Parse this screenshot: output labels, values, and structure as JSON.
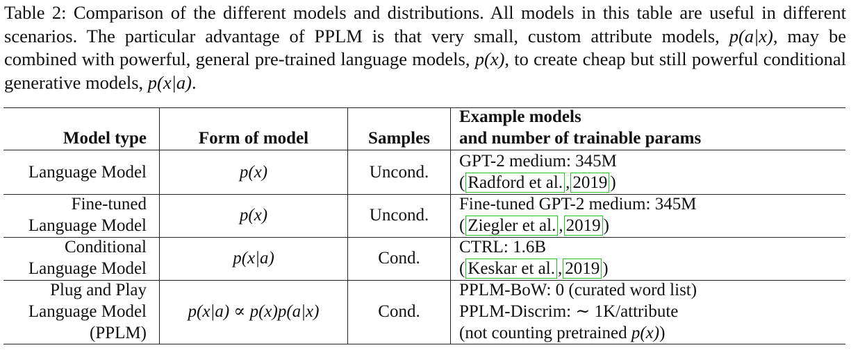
{
  "caption": {
    "label": "Table 2:",
    "part1": "Comparison of the different models and distributions. All models in this table are useful in different scenarios. The particular advantage of PPLM is that very small, custom attribute models,",
    "math1": "p(a|x)",
    "part2": ", may be combined with powerful, general pre-trained language models,",
    "math2": "p(x)",
    "part3": ", to create cheap but still powerful conditional generative models,",
    "math3": "p(x|a)",
    "part4": "."
  },
  "table": {
    "headers": {
      "model_type": "Model type",
      "form": "Form of model",
      "samples": "Samples",
      "example_line1": "Example models",
      "example_line2": "and number of trainable params"
    },
    "rows": [
      {
        "type_lines": [
          "Language Model"
        ],
        "form": "p(x)",
        "samples": "Uncond.",
        "example_line1": "GPT-2 medium: 345M",
        "cite_open": "(",
        "cite_author": "Radford et al.",
        "cite_sep": ",",
        "cite_year": "2019",
        "cite_close": ")"
      },
      {
        "type_lines": [
          "Fine-tuned",
          "Language Model"
        ],
        "form": "p(x)",
        "samples": "Uncond.",
        "example_line1": "Fine-tuned GPT-2 medium: 345M",
        "cite_open": "(",
        "cite_author": "Ziegler et al.",
        "cite_sep": ",",
        "cite_year": "2019",
        "cite_close": ")"
      },
      {
        "type_lines": [
          "Conditional",
          "Language Model"
        ],
        "form": "p(x|a)",
        "samples": "Cond.",
        "example_line1": "CTRL: 1.6B",
        "cite_open": "(",
        "cite_author": "Keskar et al.",
        "cite_sep": ",",
        "cite_year": "2019",
        "cite_close": ")"
      },
      {
        "type_lines": [
          "Plug and Play",
          "Language Model",
          "(PPLM)"
        ],
        "form": "p(x|a) ∝ p(x)p(a|x)",
        "samples": "Cond.",
        "example_lines": [
          "PPLM-BoW: 0 (curated word list)",
          "PPLM-Discrim: ∼ 1K/attribute"
        ],
        "example_line3_prefix": "(not counting pretrained ",
        "example_line3_math": "p(x)",
        "example_line3_suffix": ")"
      }
    ]
  }
}
